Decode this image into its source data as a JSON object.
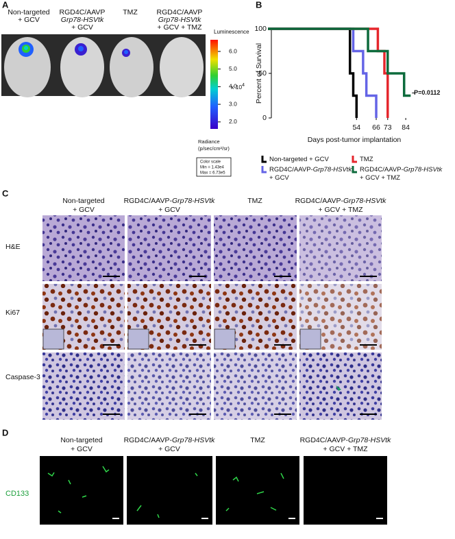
{
  "panel_a": {
    "label": "A",
    "columns": [
      [
        [
          "Non-targeted"
        ],
        [
          "+ GCV"
        ]
      ],
      [
        [
          "RGD4C/AAVP"
        ],
        [
          {
            "text": "Grp78-HSVtk",
            "italic": true
          }
        ],
        [
          "+ GCV"
        ]
      ],
      [
        [
          "TMZ"
        ]
      ],
      [
        [
          "RGD4C/AAVP"
        ],
        [
          {
            "text": "Grp78-HSVtk",
            "italic": true
          }
        ],
        [
          "+ GCV + TMZ"
        ]
      ]
    ],
    "colorbar": {
      "title": "Luminescence",
      "ticks": [
        "6.0",
        "5.0",
        "4.0",
        "3.0",
        "2.0"
      ],
      "multiplier": "x 10",
      "exponent": "4",
      "unit_title": "Radiance",
      "unit": "(p/sec/cm²/sr)",
      "scale_box": [
        "Color scale",
        "Min = 1.43e4",
        "Max = 6.73e5"
      ]
    }
  },
  "panel_b": {
    "label": "B",
    "chart_data": {
      "type": "step",
      "ylabel": "Percent of Survival",
      "xlabel": "Days post-tumor implantation",
      "xlim": [
        0,
        104
      ],
      "ylim": [
        0,
        100
      ],
      "yticks": [
        0,
        50,
        100
      ],
      "xticks": [
        54,
        66,
        73,
        84
      ],
      "annotation": {
        "text": "P=0.0112",
        "x": 97,
        "y": 28
      },
      "series": [
        {
          "name": [
            [
              "Non-targeted + GCV"
            ]
          ],
          "color": "#000000",
          "x": [
            0,
            50,
            52,
            54
          ],
          "y": [
            100,
            50,
            25,
            0
          ]
        },
        {
          "name": [
            [
              "RGD4C/AAVP-",
              {
                "text": "Grp78-HSVtk",
                "italic": true
              }
            ],
            [
              "+ GCV"
            ]
          ],
          "color": "#6464e6",
          "x": [
            0,
            52,
            58,
            60,
            66
          ],
          "y": [
            100,
            75,
            50,
            25,
            0
          ]
        },
        {
          "name": [
            [
              "TMZ"
            ]
          ],
          "color": "#e5262c",
          "x": [
            0,
            67,
            71,
            73
          ],
          "y": [
            100,
            75,
            50,
            0
          ]
        },
        {
          "name": [
            [
              "RGD4C/AAVP-",
              {
                "text": "Grp78-HSVtk",
                "italic": true
              }
            ],
            [
              "+ GCV + TMZ"
            ]
          ],
          "color": "#0d6b3c",
          "x": [
            0,
            61,
            73,
            83,
            87
          ],
          "y": [
            100,
            75,
            50,
            25,
            25
          ]
        }
      ]
    }
  },
  "panel_c": {
    "label": "C",
    "columns": [
      [
        [
          "Non-targeted"
        ],
        [
          "+ GCV"
        ]
      ],
      [
        [
          "RGD4C/AAVP-",
          {
            "text": "Grp78-HSVtk",
            "italic": true
          }
        ],
        [
          "+ GCV"
        ]
      ],
      [
        [
          "TMZ"
        ]
      ],
      [
        [
          "RGD4C/AAVP-",
          {
            "text": "Grp78-HSVtk",
            "italic": true
          }
        ],
        [
          "+ GCV + TMZ"
        ]
      ]
    ],
    "rows": [
      "H&E",
      "Ki67",
      "Caspase-3"
    ]
  },
  "panel_d": {
    "label": "D",
    "columns": [
      [
        [
          "Non-targeted"
        ],
        [
          "+ GCV"
        ]
      ],
      [
        [
          "RGD4C/AAVP-",
          {
            "text": "Grp78-HSVtk",
            "italic": true
          }
        ],
        [
          "+ GCV"
        ]
      ],
      [
        [
          "TMZ"
        ]
      ],
      [
        [
          "RGD4C/AAVP-",
          {
            "text": "Grp78-HSVtk",
            "italic": true
          }
        ],
        [
          "+ GCV + TMZ"
        ]
      ]
    ],
    "rows": [
      "CD133"
    ]
  }
}
